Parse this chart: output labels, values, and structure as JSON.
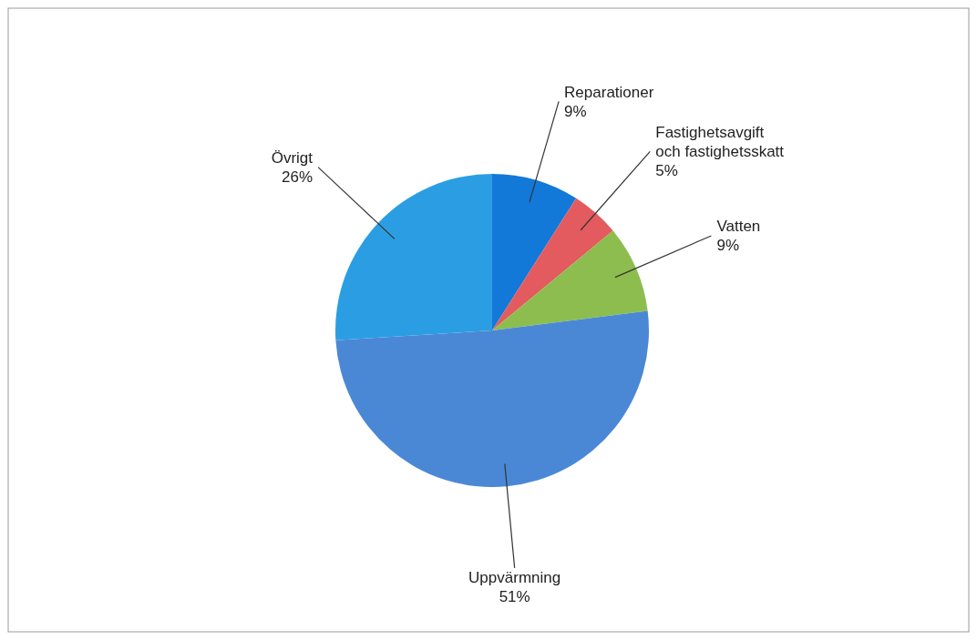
{
  "chart_data": {
    "type": "pie",
    "categories": [
      "Reparationer",
      "Fastighetsavgift och fastighetsskatt",
      "Vatten",
      "Uppvärmning",
      "Övrigt"
    ],
    "values": [
      9,
      5,
      9,
      51,
      26
    ],
    "value_labels": [
      "9%",
      "5%",
      "9%",
      "51%",
      "26%"
    ],
    "colors": [
      "#1279d9",
      "#e35b5e",
      "#8dbd4f",
      "#4a88d6",
      "#2b9ee3"
    ]
  }
}
